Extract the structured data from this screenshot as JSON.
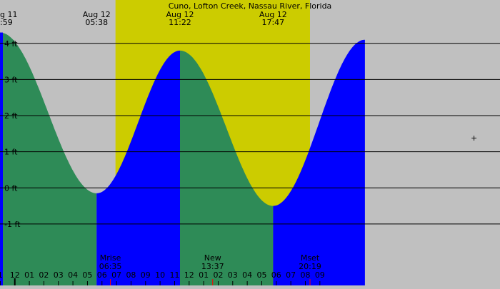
{
  "chart_data": {
    "type": "area",
    "title": "Cuno, Lofton Creek, Nassau River, Florida",
    "y_unit": "ft",
    "y_ticks": [
      {
        "value": 4,
        "label": "4 ft"
      },
      {
        "value": 3,
        "label": "3 ft"
      },
      {
        "value": 2,
        "label": "2 ft"
      },
      {
        "value": 1,
        "label": "1 ft"
      },
      {
        "value": 0,
        "label": "0 ft"
      },
      {
        "value": -1,
        "label": "-1 ft"
      }
    ],
    "x_range_hours": [
      -1.02,
      33.4
    ],
    "y_range_ft": [
      -2.7,
      5.2
    ],
    "daylight": {
      "start_hour": 6.93,
      "end_hour": 20.32
    },
    "tide_extremes": [
      {
        "kind": "high",
        "hour": -1.02,
        "height": 4.3,
        "label_date": "g 11",
        "label_time": ":59"
      },
      {
        "kind": "low",
        "hour": 5.63,
        "height": -0.15,
        "label_date": "Aug 12",
        "label_time": "05:38"
      },
      {
        "kind": "high",
        "hour": 11.37,
        "height": 3.8,
        "label_date": "Aug 12",
        "label_time": "11:22"
      },
      {
        "kind": "low",
        "hour": 17.78,
        "height": -0.5,
        "label_date": "Aug 12",
        "label_time": "17:47"
      },
      {
        "kind": "high",
        "hour": 24.1,
        "height": 4.1,
        "label_date": "",
        "label_time": ""
      }
    ],
    "hour_ticks": [
      {
        "hour": -1,
        "label": "1"
      },
      {
        "hour": 0,
        "label": "12"
      },
      {
        "hour": 1,
        "label": "01"
      },
      {
        "hour": 2,
        "label": "02"
      },
      {
        "hour": 3,
        "label": "03"
      },
      {
        "hour": 4,
        "label": "04"
      },
      {
        "hour": 5,
        "label": "05"
      },
      {
        "hour": 6,
        "label": "06"
      },
      {
        "hour": 7,
        "label": "07"
      },
      {
        "hour": 8,
        "label": "08"
      },
      {
        "hour": 9,
        "label": "09"
      },
      {
        "hour": 10,
        "label": "10"
      },
      {
        "hour": 11,
        "label": "11"
      },
      {
        "hour": 12,
        "label": "12"
      },
      {
        "hour": 13,
        "label": "01"
      },
      {
        "hour": 14,
        "label": "02"
      },
      {
        "hour": 15,
        "label": "03"
      },
      {
        "hour": 16,
        "label": "04"
      },
      {
        "hour": 17,
        "label": "05"
      },
      {
        "hour": 18,
        "label": "06"
      },
      {
        "hour": 19,
        "label": "07"
      },
      {
        "hour": 20,
        "label": "08"
      },
      {
        "hour": 21,
        "label": "09"
      }
    ],
    "moon_events": [
      {
        "name": "Mrise",
        "time": "06:35",
        "hour": 6.58
      },
      {
        "name": "New",
        "time": "13:37",
        "hour": 13.62
      },
      {
        "name": "Mset",
        "time": "20:19",
        "hour": 20.32
      }
    ],
    "colors": {
      "background": "#c0c0c0",
      "daylight": "#cccc00",
      "falling_tide": "#2e8b57",
      "rising_tide": "#0000ff",
      "grid": "#000000",
      "tick_marker": "#ff0000"
    }
  }
}
